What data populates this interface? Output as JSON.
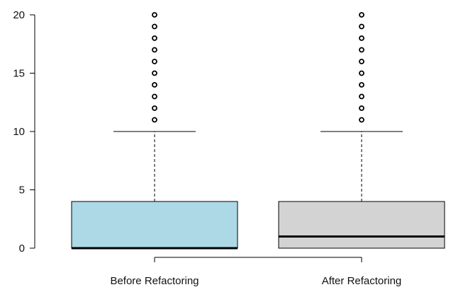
{
  "chart_data": {
    "type": "boxplot",
    "categories": [
      "Before Refactoring",
      "After Refactoring"
    ],
    "series": [
      {
        "category": "Before Refactoring",
        "min": 0,
        "q1": 0,
        "median": 0,
        "q3": 4,
        "max": 10,
        "outliers": [
          11,
          12,
          13,
          14,
          15,
          16,
          17,
          18,
          19,
          20
        ],
        "color": "#ADD8E6"
      },
      {
        "category": "After Refactoring",
        "min": 0,
        "q1": 0,
        "median": 1,
        "q3": 4,
        "max": 10,
        "outliers": [
          11,
          12,
          13,
          14,
          15,
          16,
          17,
          18,
          19,
          20
        ],
        "color": "#D3D3D3"
      }
    ],
    "y_ticks": [
      "0",
      "5",
      "10",
      "15",
      "20"
    ],
    "ylim": [
      0,
      20
    ],
    "grid": false,
    "title": "",
    "xlabel": "",
    "ylabel": ""
  }
}
